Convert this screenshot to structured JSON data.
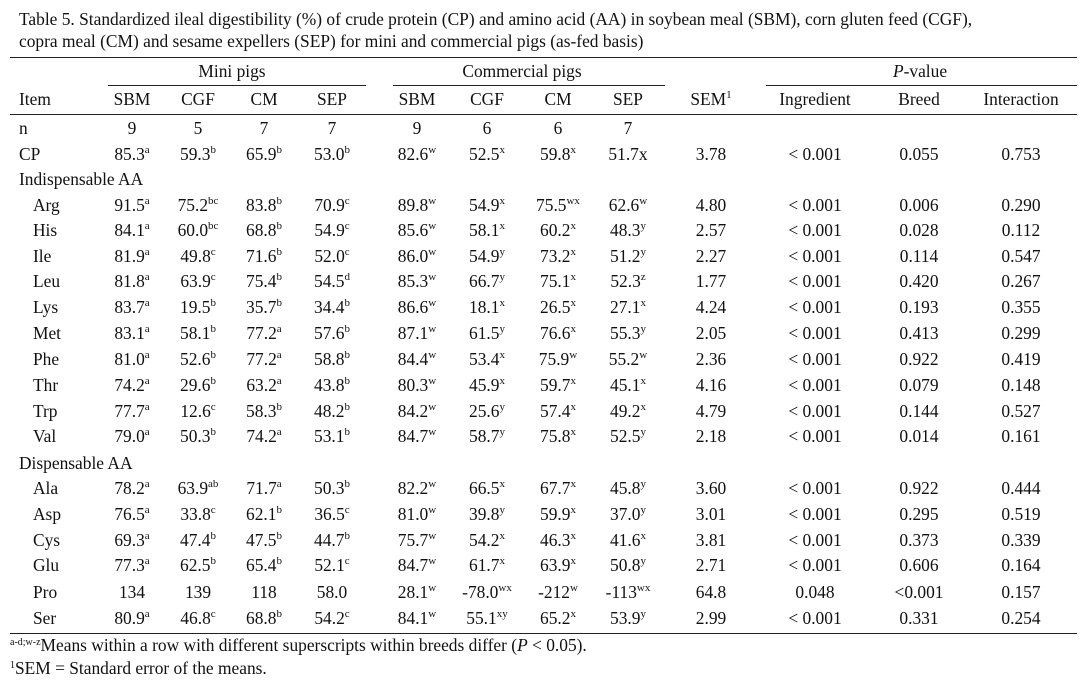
{
  "caption": {
    "line1": "Table 5. Standardized ileal digestibility (%) of crude protein (CP) and amino acid (AA) in soybean meal (SBM), corn gluten feed (CGF),",
    "line2": "copra meal (CM) and sesame expellers (SEP) for mini and commercial pigs (as-fed basis)"
  },
  "groups": {
    "mini": "Mini pigs",
    "commercial": "Commercial pigs",
    "pvalue_italic": "P",
    "pvalue_rest": "-value"
  },
  "headers": [
    "Item",
    "SBM",
    "CGF",
    "CM",
    "SEP",
    "SBM",
    "CGF",
    "CM",
    "SEP",
    "SEM",
    "Ingredient",
    "Breed",
    "Interaction"
  ],
  "sem_mark": "1",
  "sections": {
    "indispensable": "Indispensable AA",
    "dispensable": "Dispensable AA"
  },
  "rows": [
    {
      "label": "n",
      "cells": [
        [
          "9",
          ""
        ],
        [
          "5",
          ""
        ],
        [
          "7",
          ""
        ],
        [
          "7",
          ""
        ],
        [
          "9",
          ""
        ],
        [
          "6",
          ""
        ],
        [
          "6",
          ""
        ],
        [
          "7",
          ""
        ],
        [
          "",
          ""
        ],
        [
          "",
          ""
        ],
        [
          "",
          ""
        ],
        [
          "",
          ""
        ]
      ]
    },
    {
      "label": "CP",
      "cells": [
        [
          "85.3",
          "a"
        ],
        [
          "59.3",
          "b"
        ],
        [
          "65.9",
          "b"
        ],
        [
          "53.0",
          "b"
        ],
        [
          "82.6",
          "w"
        ],
        [
          "52.5",
          "x"
        ],
        [
          "59.8",
          "x"
        ],
        [
          "51.7x",
          ""
        ],
        [
          "3.78",
          ""
        ],
        [
          "< 0.001",
          ""
        ],
        [
          "0.055",
          ""
        ],
        [
          "0.753",
          ""
        ]
      ]
    },
    {
      "label": "Arg",
      "cells": [
        [
          "91.5",
          "a"
        ],
        [
          "75.2",
          "bc"
        ],
        [
          "83.8",
          "b"
        ],
        [
          "70.9",
          "c"
        ],
        [
          "89.8",
          "w"
        ],
        [
          "54.9",
          "x"
        ],
        [
          "75.5",
          "wx"
        ],
        [
          "62.6",
          "w"
        ],
        [
          "4.80",
          ""
        ],
        [
          "< 0.001",
          ""
        ],
        [
          "0.006",
          ""
        ],
        [
          "0.290",
          ""
        ]
      ]
    },
    {
      "label": "His",
      "cells": [
        [
          "84.1",
          "a"
        ],
        [
          "60.0",
          "bc"
        ],
        [
          "68.8",
          "b"
        ],
        [
          "54.9",
          "c"
        ],
        [
          "85.6",
          "w"
        ],
        [
          "58.1",
          "x"
        ],
        [
          "60.2",
          "x"
        ],
        [
          "48.3",
          "y"
        ],
        [
          "2.57",
          ""
        ],
        [
          "< 0.001",
          ""
        ],
        [
          "0.028",
          ""
        ],
        [
          "0.112",
          ""
        ]
      ]
    },
    {
      "label": "Ile",
      "cells": [
        [
          "81.9",
          "a"
        ],
        [
          "49.8",
          "c"
        ],
        [
          "71.6",
          "b"
        ],
        [
          "52.0",
          "c"
        ],
        [
          "86.0",
          "w"
        ],
        [
          "54.9",
          "y"
        ],
        [
          "73.2",
          "x"
        ],
        [
          "51.2",
          "y"
        ],
        [
          "2.27",
          ""
        ],
        [
          "< 0.001",
          ""
        ],
        [
          "0.114",
          ""
        ],
        [
          "0.547",
          ""
        ]
      ]
    },
    {
      "label": "Leu",
      "cells": [
        [
          "81.8",
          "a"
        ],
        [
          "63.9",
          "c"
        ],
        [
          "75.4",
          "b"
        ],
        [
          "54.5",
          "d"
        ],
        [
          "85.3",
          "w"
        ],
        [
          "66.7",
          "y"
        ],
        [
          "75.1",
          "x"
        ],
        [
          "52.3",
          "z"
        ],
        [
          "1.77",
          ""
        ],
        [
          "< 0.001",
          ""
        ],
        [
          "0.420",
          ""
        ],
        [
          "0.267",
          ""
        ]
      ]
    },
    {
      "label": "Lys",
      "cells": [
        [
          "83.7",
          "a"
        ],
        [
          "19.5",
          "b"
        ],
        [
          "35.7",
          "b"
        ],
        [
          "34.4",
          "b"
        ],
        [
          "86.6",
          "w"
        ],
        [
          "18.1",
          "x"
        ],
        [
          "26.5",
          "x"
        ],
        [
          "27.1",
          "x"
        ],
        [
          "4.24",
          ""
        ],
        [
          "< 0.001",
          ""
        ],
        [
          "0.193",
          ""
        ],
        [
          "0.355",
          ""
        ]
      ]
    },
    {
      "label": "Met",
      "cells": [
        [
          "83.1",
          "a"
        ],
        [
          "58.1",
          "b"
        ],
        [
          "77.2",
          "a"
        ],
        [
          "57.6",
          "b"
        ],
        [
          "87.1",
          "w"
        ],
        [
          "61.5",
          "y"
        ],
        [
          "76.6",
          "x"
        ],
        [
          "55.3",
          "y"
        ],
        [
          "2.05",
          ""
        ],
        [
          "< 0.001",
          ""
        ],
        [
          "0.413",
          ""
        ],
        [
          "0.299",
          ""
        ]
      ]
    },
    {
      "label": "Phe",
      "cells": [
        [
          "81.0",
          "a"
        ],
        [
          "52.6",
          "b"
        ],
        [
          "77.2",
          "a"
        ],
        [
          "58.8",
          "b"
        ],
        [
          "84.4",
          "w"
        ],
        [
          "53.4",
          "x"
        ],
        [
          "75.9",
          "w"
        ],
        [
          "55.2",
          "w"
        ],
        [
          "2.36",
          ""
        ],
        [
          "< 0.001",
          ""
        ],
        [
          "0.922",
          ""
        ],
        [
          "0.419",
          ""
        ]
      ]
    },
    {
      "label": "Thr",
      "cells": [
        [
          "74.2",
          "a"
        ],
        [
          "29.6",
          "b"
        ],
        [
          "63.2",
          "a"
        ],
        [
          "43.8",
          "b"
        ],
        [
          "80.3",
          "w"
        ],
        [
          "45.9",
          "x"
        ],
        [
          "59.7",
          "x"
        ],
        [
          "45.1",
          "x"
        ],
        [
          "4.16",
          ""
        ],
        [
          "< 0.001",
          ""
        ],
        [
          "0.079",
          ""
        ],
        [
          "0.148",
          ""
        ]
      ]
    },
    {
      "label": "Trp",
      "cells": [
        [
          "77.7",
          "a"
        ],
        [
          "12.6",
          "c"
        ],
        [
          "58.3",
          "b"
        ],
        [
          "48.2",
          "b"
        ],
        [
          "84.2",
          "w"
        ],
        [
          "25.6",
          "y"
        ],
        [
          "57.4",
          "x"
        ],
        [
          "49.2",
          "x"
        ],
        [
          "4.79",
          ""
        ],
        [
          "< 0.001",
          ""
        ],
        [
          "0.144",
          ""
        ],
        [
          "0.527",
          ""
        ]
      ]
    },
    {
      "label": "Val",
      "cells": [
        [
          "79.0",
          "a"
        ],
        [
          "50.3",
          "b"
        ],
        [
          "74.2",
          "a"
        ],
        [
          "53.1",
          "b"
        ],
        [
          "84.7",
          "w"
        ],
        [
          "58.7",
          "y"
        ],
        [
          "75.8",
          "x"
        ],
        [
          "52.5",
          "y"
        ],
        [
          "2.18",
          ""
        ],
        [
          "< 0.001",
          ""
        ],
        [
          "0.014",
          ""
        ],
        [
          "0.161",
          ""
        ]
      ]
    },
    {
      "label": "Ala",
      "cells": [
        [
          "78.2",
          "a"
        ],
        [
          "63.9",
          "ab"
        ],
        [
          "71.7",
          "a"
        ],
        [
          "50.3",
          "b"
        ],
        [
          "82.2",
          "w"
        ],
        [
          "66.5",
          "x"
        ],
        [
          "67.7",
          "x"
        ],
        [
          "45.8",
          "y"
        ],
        [
          "3.60",
          ""
        ],
        [
          "< 0.001",
          ""
        ],
        [
          "0.922",
          ""
        ],
        [
          "0.444",
          ""
        ]
      ]
    },
    {
      "label": "Asp",
      "cells": [
        [
          "76.5",
          "a"
        ],
        [
          "33.8",
          "c"
        ],
        [
          "62.1",
          "b"
        ],
        [
          "36.5",
          "c"
        ],
        [
          "81.0",
          "w"
        ],
        [
          "39.8",
          "y"
        ],
        [
          "59.9",
          "x"
        ],
        [
          "37.0",
          "y"
        ],
        [
          "3.01",
          ""
        ],
        [
          "< 0.001",
          ""
        ],
        [
          "0.295",
          ""
        ],
        [
          "0.519",
          ""
        ]
      ]
    },
    {
      "label": "Cys",
      "cells": [
        [
          "69.3",
          "a"
        ],
        [
          "47.4",
          "b"
        ],
        [
          "47.5",
          "b"
        ],
        [
          "44.7",
          "b"
        ],
        [
          "75.7",
          "w"
        ],
        [
          "54.2",
          "x"
        ],
        [
          "46.3",
          "x"
        ],
        [
          "41.6",
          "x"
        ],
        [
          "3.81",
          ""
        ],
        [
          "< 0.001",
          ""
        ],
        [
          "0.373",
          ""
        ],
        [
          "0.339",
          ""
        ]
      ]
    },
    {
      "label": "Glu",
      "cells": [
        [
          "77.3",
          "a"
        ],
        [
          "62.5",
          "b"
        ],
        [
          "65.4",
          "b"
        ],
        [
          "52.1",
          "c"
        ],
        [
          "84.7",
          "w"
        ],
        [
          "61.7",
          "x"
        ],
        [
          "63.9",
          "x"
        ],
        [
          "50.8",
          "y"
        ],
        [
          "2.71",
          ""
        ],
        [
          "< 0.001",
          ""
        ],
        [
          "0.606",
          ""
        ],
        [
          "0.164",
          ""
        ]
      ]
    },
    {
      "label": "Pro",
      "cells": [
        [
          "134",
          ""
        ],
        [
          "139",
          ""
        ],
        [
          "118",
          ""
        ],
        [
          "58.0",
          ""
        ],
        [
          "28.1",
          "w"
        ],
        [
          "-78.0",
          "wx"
        ],
        [
          "-212",
          "w"
        ],
        [
          "-113",
          "wx"
        ],
        [
          "64.8",
          ""
        ],
        [
          "0.048",
          ""
        ],
        [
          "<0.001",
          ""
        ],
        [
          "0.157",
          ""
        ]
      ]
    },
    {
      "label": "Ser",
      "cells": [
        [
          "80.9",
          "a"
        ],
        [
          "46.8",
          "c"
        ],
        [
          "68.8",
          "b"
        ],
        [
          "54.2",
          "c"
        ],
        [
          "84.1",
          "w"
        ],
        [
          "55.1",
          "xy"
        ],
        [
          "65.2",
          "x"
        ],
        [
          "53.9",
          "y"
        ],
        [
          "2.99",
          ""
        ],
        [
          "< 0.001",
          ""
        ],
        [
          "0.331",
          ""
        ],
        [
          "0.254",
          ""
        ]
      ]
    }
  ],
  "footnotes": {
    "f1_sup": "a-d;w-z",
    "f1_pre": "Means within a row with different superscripts within breeds differ (",
    "f1_p": "P",
    "f1_post": " < 0.05).",
    "f2_sup": "1",
    "f2_text": "SEM = Standard error of the means."
  }
}
